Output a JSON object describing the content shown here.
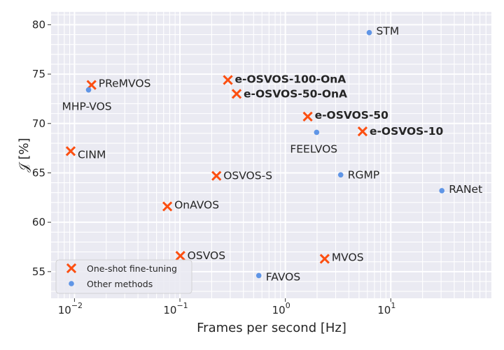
{
  "chart_data": {
    "type": "scatter",
    "xlabel": "Frames per second [Hz]",
    "ylabel": "𝒥 [%]",
    "xscale": "log",
    "xlim": [
      0.006,
      90
    ],
    "ylim": [
      52.3,
      81.3
    ],
    "xticks": [
      {
        "value": 0.01,
        "base": "10",
        "exp": "−2"
      },
      {
        "value": 0.1,
        "base": "10",
        "exp": "−1"
      },
      {
        "value": 1,
        "base": "10",
        "exp": "0"
      },
      {
        "value": 10,
        "base": "10",
        "exp": "1"
      }
    ],
    "yticks": [
      55,
      60,
      65,
      70,
      75,
      80
    ],
    "grid": true,
    "legend_position": "bottom-left",
    "colors": {
      "one_shot": "#fc4f11",
      "other": "#5f95e6",
      "background": "#eaeaf2",
      "grid": "#ffffff"
    },
    "series": [
      {
        "name": "One-shot fine-tuning",
        "marker": "x",
        "points": [
          {
            "label": "PReMVOS",
            "x": 0.0145,
            "y": 73.9,
            "bold": false
          },
          {
            "label": "CINM",
            "x": 0.0092,
            "y": 67.2,
            "bold": false
          },
          {
            "label": "OnAVOS",
            "x": 0.076,
            "y": 61.6,
            "bold": false
          },
          {
            "label": "OSVOS",
            "x": 0.101,
            "y": 56.6,
            "bold": false
          },
          {
            "label": "OSVOS-S",
            "x": 0.222,
            "y": 64.7,
            "bold": false
          },
          {
            "label": "e-OSVOS-100-OnA",
            "x": 0.285,
            "y": 74.4,
            "bold": true
          },
          {
            "label": "e-OSVOS-50-OnA",
            "x": 0.345,
            "y": 73.0,
            "bold": true
          },
          {
            "label": "e-OSVOS-50",
            "x": 1.63,
            "y": 70.7,
            "bold": true
          },
          {
            "label": "e-OSVOS-10",
            "x": 5.4,
            "y": 69.2,
            "bold": true
          },
          {
            "label": "MVOS",
            "x": 2.36,
            "y": 56.3,
            "bold": false
          }
        ]
      },
      {
        "name": "Other methods",
        "marker": "dot",
        "points": [
          {
            "label": "MHP-VOS",
            "x": 0.0136,
            "y": 73.4
          },
          {
            "label": "FEELVOS",
            "x": 1.98,
            "y": 69.1
          },
          {
            "label": "FAVOS",
            "x": 0.56,
            "y": 54.6
          },
          {
            "label": "RGMP",
            "x": 3.35,
            "y": 64.8
          },
          {
            "label": "STM",
            "x": 6.25,
            "y": 79.2
          },
          {
            "label": "RANet",
            "x": 30.5,
            "y": 63.2
          }
        ]
      }
    ]
  }
}
